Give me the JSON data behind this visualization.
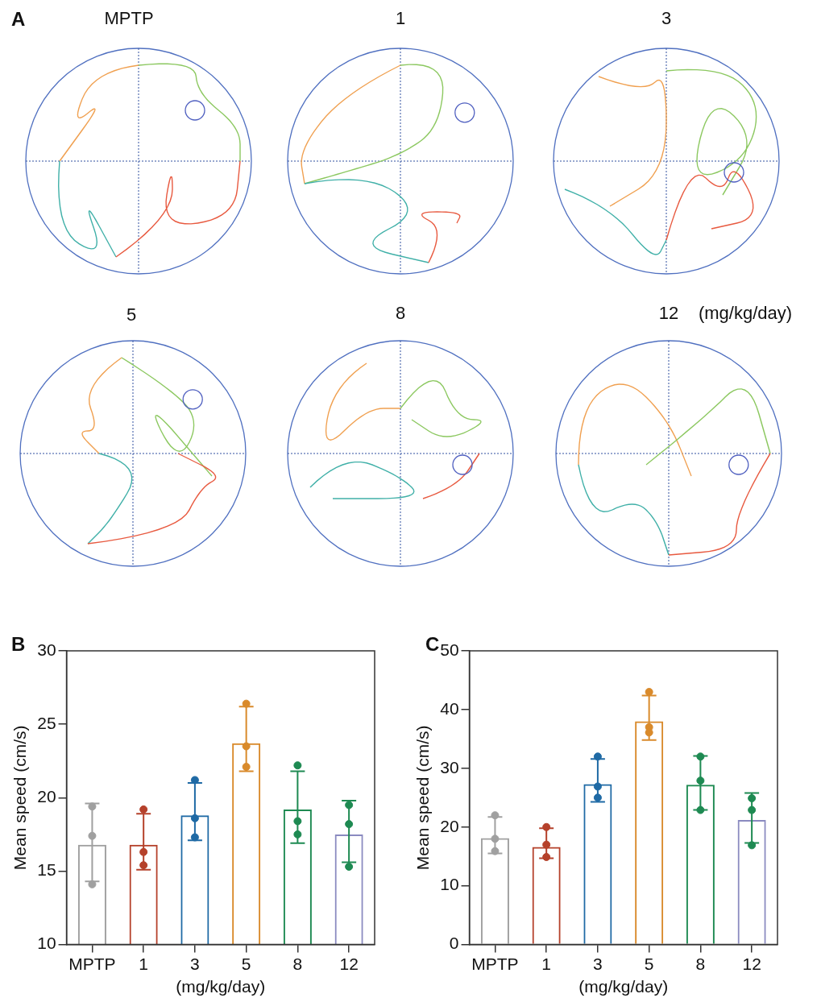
{
  "chart_data": [
    {
      "type": "other",
      "annotations": [
        "A",
        "MPTP",
        "1",
        "3",
        "5",
        "8",
        "12",
        "(mg/kg/day)"
      ]
    },
    {
      "type": "bar",
      "annotations": [
        "B"
      ],
      "xlabel": "(mg/kg/day)",
      "ylabel": "Mean speed (cm/s)",
      "categories": [
        "MPTP",
        "1",
        "3",
        "5",
        "8",
        "12"
      ],
      "ylim": [
        10,
        30
      ],
      "yticks": [
        10,
        15,
        20,
        25,
        30
      ],
      "grid": false,
      "legend": false,
      "marker": "circle",
      "series": [
        {
          "type": "bar",
          "colors": [
            "#a0a0a0",
            "#b5412b",
            "#1f6aa5",
            "#d98a2b",
            "#1e8a52",
            "#8a8ac0"
          ],
          "values": [
            16.8,
            16.8,
            18.8,
            23.7,
            19.2,
            17.5
          ],
          "errors": [
            [
              14.3,
              19.6
            ],
            [
              15.1,
              18.9
            ],
            [
              17.1,
              21.0
            ],
            [
              21.8,
              26.2
            ],
            [
              16.9,
              21.8
            ],
            [
              15.6,
              19.8
            ]
          ]
        },
        {
          "type": "scatter",
          "x": [
            "MPTP",
            "MPTP",
            "MPTP",
            "1",
            "1",
            "1",
            "3",
            "3",
            "3",
            "5",
            "5",
            "5",
            "8",
            "8",
            "8",
            "12",
            "12",
            "12"
          ],
          "values": [
            19.4,
            17.4,
            14.1,
            19.2,
            16.3,
            15.4,
            21.2,
            18.6,
            17.3,
            26.4,
            23.5,
            22.1,
            22.2,
            18.4,
            17.5,
            19.5,
            18.2,
            15.3
          ],
          "colors": [
            "#a0a0a0",
            "#a0a0a0",
            "#a0a0a0",
            "#b5412b",
            "#b5412b",
            "#b5412b",
            "#1f6aa5",
            "#1f6aa5",
            "#1f6aa5",
            "#d98a2b",
            "#d98a2b",
            "#d98a2b",
            "#1e8a52",
            "#1e8a52",
            "#1e8a52",
            "#1e8a52",
            "#1e8a52",
            "#1e8a52"
          ]
        }
      ]
    },
    {
      "type": "bar",
      "annotations": [
        "C"
      ],
      "xlabel": "(mg/kg/day)",
      "ylabel": "Mean speed (cm/s)",
      "categories": [
        "MPTP",
        "1",
        "3",
        "5",
        "8",
        "12"
      ],
      "ylim": [
        0,
        50
      ],
      "yticks": [
        0,
        10,
        20,
        30,
        40,
        50
      ],
      "grid": false,
      "legend": false,
      "marker": "circle",
      "series": [
        {
          "type": "bar",
          "colors": [
            "#a0a0a0",
            "#b5412b",
            "#1f6aa5",
            "#d98a2b",
            "#1e8a52",
            "#8a8ac0"
          ],
          "values": [
            18.1,
            16.6,
            27.3,
            38.0,
            27.2,
            21.2
          ],
          "errors": [
            [
              15.5,
              21.7
            ],
            [
              14.7,
              19.8
            ],
            [
              24.3,
              31.6
            ],
            [
              34.8,
              42.4
            ],
            [
              22.9,
              32.1
            ],
            [
              17.3,
              25.8
            ]
          ]
        },
        {
          "type": "scatter",
          "x": [
            "MPTP",
            "MPTP",
            "MPTP",
            "1",
            "1",
            "1",
            "3",
            "3",
            "3",
            "5",
            "5",
            "5",
            "8",
            "8",
            "8",
            "12",
            "12",
            "12"
          ],
          "values": [
            22.0,
            18.0,
            15.9,
            20.0,
            17.0,
            14.9,
            32.0,
            26.9,
            25.0,
            43.0,
            37.0,
            36.1,
            32.0,
            27.9,
            22.9,
            24.9,
            22.9,
            16.9
          ],
          "colors": [
            "#a0a0a0",
            "#a0a0a0",
            "#a0a0a0",
            "#b5412b",
            "#b5412b",
            "#b5412b",
            "#1f6aa5",
            "#1f6aa5",
            "#1f6aa5",
            "#d98a2b",
            "#d98a2b",
            "#d98a2b",
            "#1e8a52",
            "#1e8a52",
            "#1e8a52",
            "#1e8a52",
            "#1e8a52",
            "#1e8a52"
          ]
        }
      ]
    }
  ]
}
